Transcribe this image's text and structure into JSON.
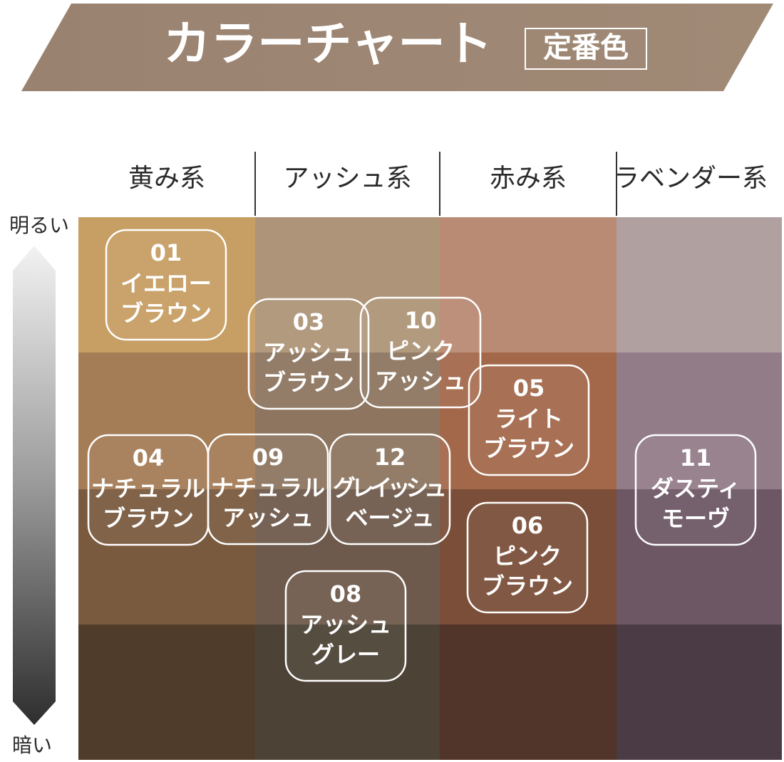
{
  "header": {
    "title": "カラーチャート",
    "badge": "定番色"
  },
  "columns": [
    "黄み系",
    "アッシュ系",
    "赤み系",
    "ラベンダー系"
  ],
  "axis": {
    "top": "明るい",
    "bottom": "暗い"
  },
  "items": [
    {
      "number": "01",
      "lines": [
        "イエロー",
        "ブラウン"
      ]
    },
    {
      "number": "03",
      "lines": [
        "アッシュ",
        "ブラウン"
      ]
    },
    {
      "number": "10",
      "lines": [
        "ピンク",
        "アッシュ"
      ]
    },
    {
      "number": "05",
      "lines": [
        "ライト",
        "ブラウン"
      ]
    },
    {
      "number": "04",
      "lines": [
        "ナチュラル",
        "ブラウン"
      ]
    },
    {
      "number": "09",
      "lines": [
        "ナチュラル",
        "アッシュ"
      ]
    },
    {
      "number": "12",
      "lines": [
        "グレイッシュ",
        "ベージュ"
      ]
    },
    {
      "number": "11",
      "lines": [
        "ダスティ",
        "モーヴ"
      ]
    },
    {
      "number": "06",
      "lines": [
        "ピンク",
        "ブラウン"
      ]
    },
    {
      "number": "08",
      "lines": [
        "アッシュ",
        "グレー"
      ]
    }
  ]
}
